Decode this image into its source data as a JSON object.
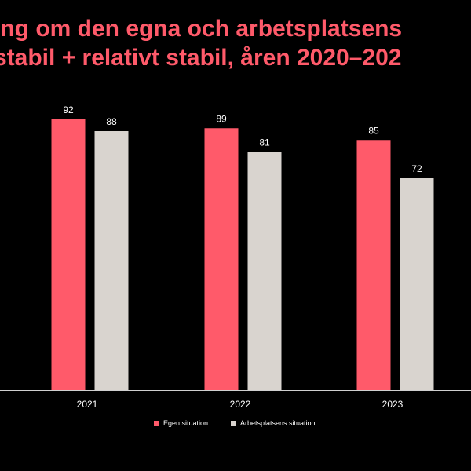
{
  "title_lines": [
    "ing om den egna och arbetsplatsens",
    "stabil + relativt stabil, åren 2020–202"
  ],
  "colors": {
    "background": "#000000",
    "title": "#ff5a6a",
    "series1": "#ff5a6a",
    "series2": "#d9d4cf",
    "text": "#ffffff",
    "axis": "#d0d0d0"
  },
  "chart_data": {
    "type": "bar",
    "categories": [
      "2021",
      "2022",
      "2023"
    ],
    "series": [
      {
        "name": "Egen situation",
        "values": [
          92,
          89,
          85
        ]
      },
      {
        "name": "Arbetsplatsens situation",
        "values": [
          88,
          81,
          72
        ]
      }
    ],
    "ylim": [
      0,
      100
    ],
    "grid": false,
    "legend_position": "bottom",
    "data_labels": true
  }
}
